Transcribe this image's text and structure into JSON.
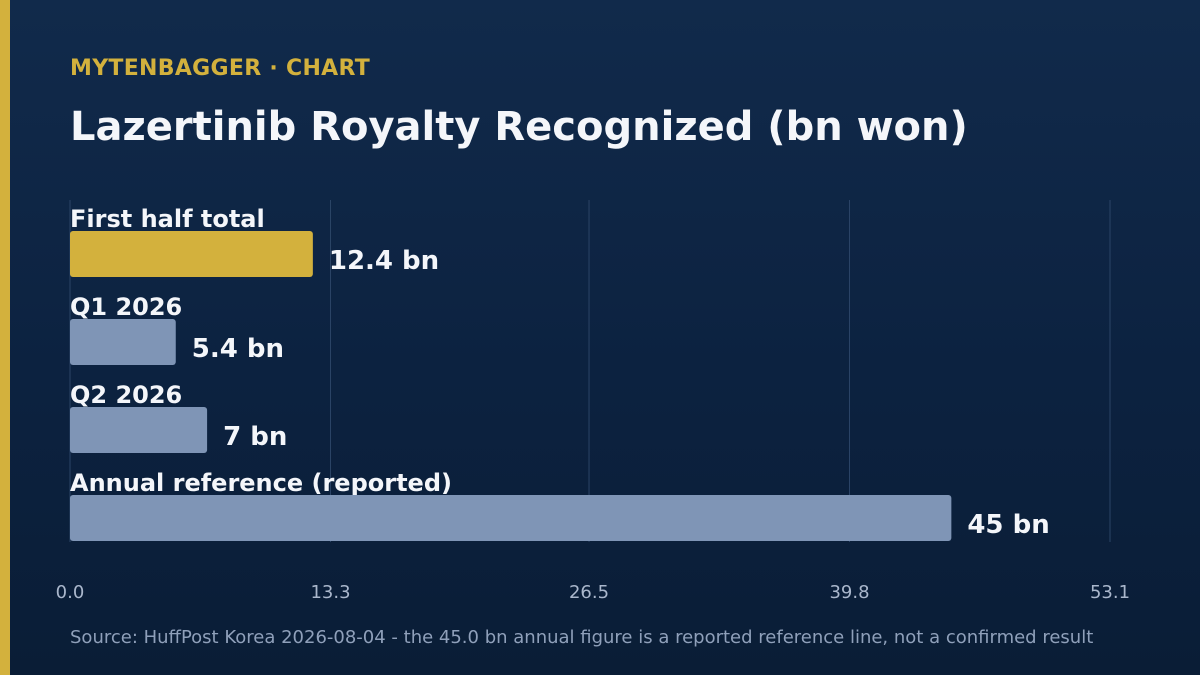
{
  "brand": {
    "text": "MYTENBAGGER · CHART"
  },
  "colors": {
    "accent": "#d3b13d",
    "bar": "#7f95b6",
    "background": "#0c2240",
    "grid": "#2b4466"
  },
  "chart_data": {
    "type": "bar",
    "orientation": "horizontal",
    "title": "Lazertinib Royalty Recognized (bn won)",
    "categories": [
      "First half total",
      "Q1 2026",
      "Q2 2026",
      "Annual reference (reported)"
    ],
    "values": [
      12.4,
      5.4,
      7,
      45
    ],
    "value_labels": [
      "12.4 bn",
      "5.4 bn",
      "7 bn",
      "45 bn"
    ],
    "highlight_index": 0,
    "xlim": [
      0,
      53.1
    ],
    "x_ticks": [
      "0.0",
      "13.3",
      "26.5",
      "39.8",
      "53.1"
    ],
    "grid": true,
    "source": "Source: HuffPost Korea 2026-08-04 - the 45.0 bn annual figure is a reported reference line, not a confirmed result"
  }
}
